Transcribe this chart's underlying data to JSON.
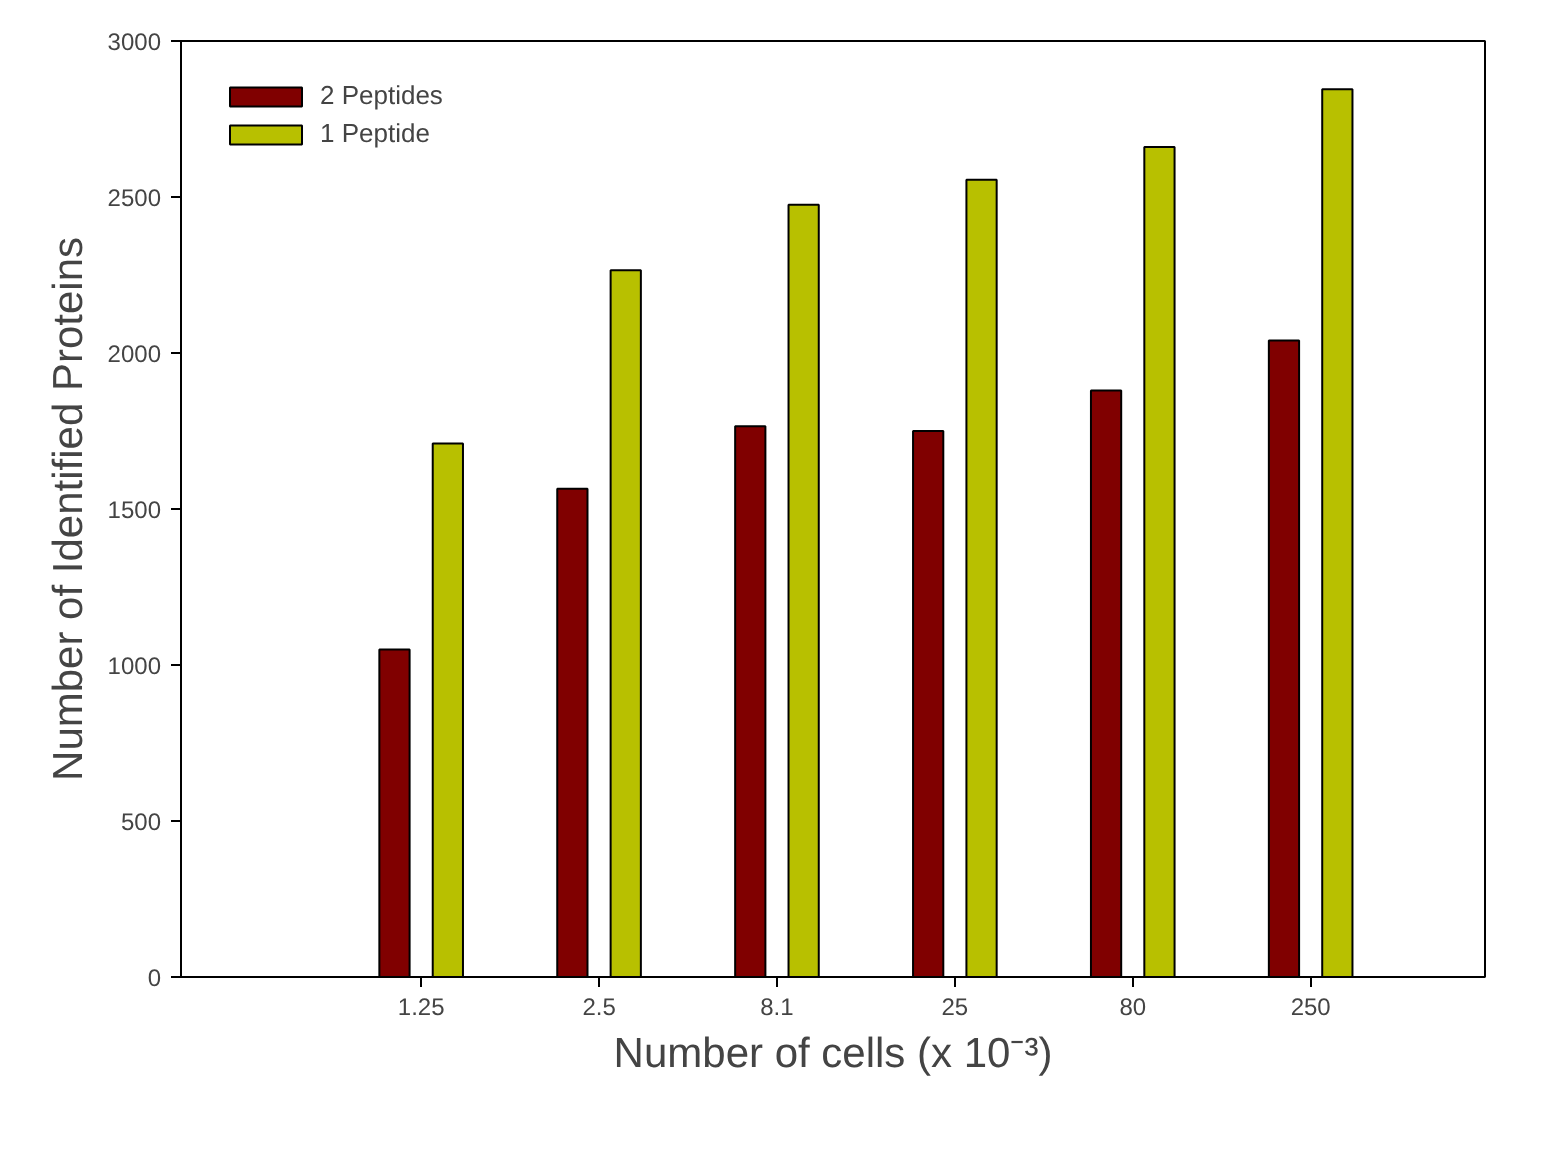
{
  "chart_data": {
    "type": "bar",
    "xlabel": "Number of cells (x 10⁻³)",
    "ylabel": "Number of Identified Proteins",
    "categories": [
      "1.25",
      "2.5",
      "8.1",
      "25",
      "80",
      "250"
    ],
    "series": [
      {
        "name": "2 Peptides",
        "color": "#800000",
        "values": [
          1050,
          1565,
          1765,
          1750,
          1880,
          2040
        ]
      },
      {
        "name": "1 Peptide",
        "color": "#b8c000",
        "values": [
          1710,
          2265,
          2475,
          2555,
          2660,
          2845
        ]
      }
    ],
    "ylim": [
      0,
      3000
    ],
    "yticks": [
      0,
      500,
      1000,
      1500,
      2000,
      2500,
      3000
    ],
    "grid": false,
    "legend": "top left"
  }
}
